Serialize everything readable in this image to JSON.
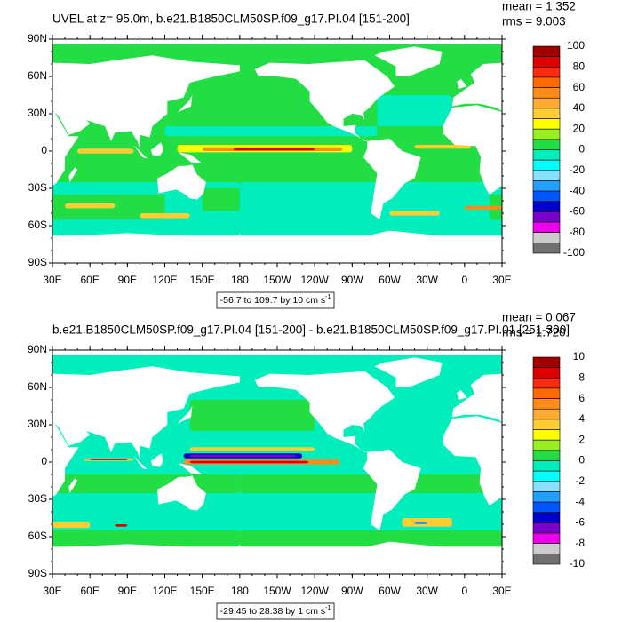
{
  "panels": [
    {
      "title": "UVEL at z=  95.0m, b.e21.B1850CLM50SP.f09_g17.PI.04 [151-200]",
      "mean": "mean = 1.352",
      "rms": "rms = 9.003",
      "range_label": "-56.7 to 109.7 by 10 cm s",
      "range_unit_sup": "-1",
      "colorbar_labels": [
        "100",
        "80",
        "60",
        "40",
        "20",
        "0",
        "-20",
        "-40",
        "-60",
        "-80",
        "-100"
      ]
    },
    {
      "title": "b.e21.B1850CLM50SP.f09_g17.PI.04 [151-200] - b.e21.B1850CLM50SP.f09_g17.PI.01 [251-300]",
      "mean": "mean = 0.067",
      "rms": "rms = 1.720",
      "range_label": "-29.45 to 28.38 by 1 cm s",
      "range_unit_sup": "-1",
      "colorbar_labels": [
        "10",
        "8",
        "6",
        "4",
        "2",
        "0",
        "-2",
        "-4",
        "-6",
        "-8",
        "-10"
      ]
    }
  ],
  "lat_labels": [
    "90N",
    "60N",
    "30N",
    "0",
    "30S",
    "60S",
    "90S"
  ],
  "lon_labels": [
    "30E",
    "60E",
    "90E",
    "120E",
    "150E",
    "180",
    "150W",
    "120W",
    "90W",
    "60W",
    "30W",
    "0",
    "30E"
  ],
  "colorbar_colors": [
    "#a00000",
    "#dd0000",
    "#ff2a10",
    "#ff6a00",
    "#ff8c1a",
    "#ffaa33",
    "#ffcc33",
    "#ffff00",
    "#99ee22",
    "#22dd44",
    "#00eebb",
    "#00ffff",
    "#88e0ff",
    "#22a0ff",
    "#0055ff",
    "#0000cc",
    "#7a00cc",
    "#ee00ee",
    "#cccccc",
    "#707070"
  ]
}
